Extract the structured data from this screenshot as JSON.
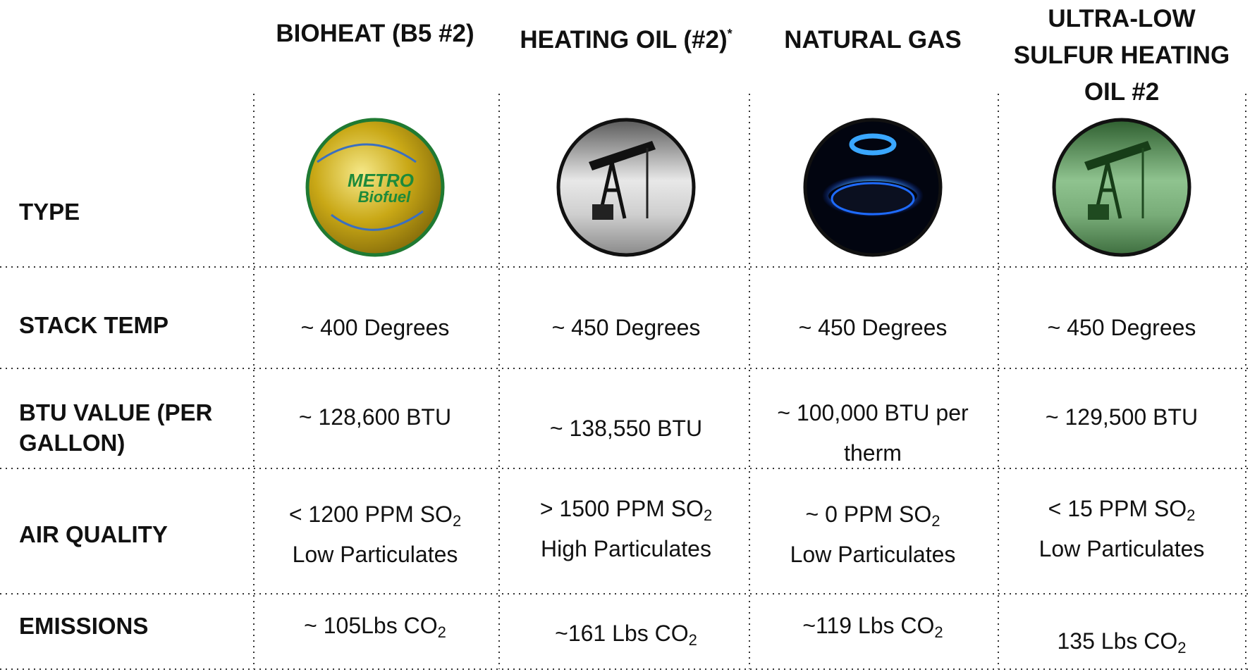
{
  "header": {
    "columns": [
      {
        "text": "BIOHEAT (B5 #2)"
      },
      {
        "text": "HEATING OIL (#2)",
        "sup": "*"
      },
      {
        "text": "NATURAL GAS"
      },
      {
        "lines": [
          "ULTRA-LOW",
          "SULFUR  HEATING",
          "OIL #2"
        ]
      }
    ]
  },
  "logo": {
    "brand": "METRO",
    "product": "Biofuel"
  },
  "rows": [
    {
      "label": [
        "TYPE"
      ],
      "cells": []
    },
    {
      "label": [
        "STACK TEMP"
      ],
      "cells": [
        {
          "text": "~ 400 Degrees"
        },
        {
          "text": "~ 450 Degrees"
        },
        {
          "text": "~ 450 Degrees"
        },
        {
          "text": "~ 450 Degrees"
        }
      ]
    },
    {
      "label": [
        "BTU VALUE (PER",
        "GALLON)"
      ],
      "cells": [
        {
          "text": "~ 128,600 BTU"
        },
        {
          "text": "~ 138,550 BTU"
        },
        {
          "text": "~ 100,000 BTU per",
          "line2": "therm"
        },
        {
          "text": "~ 129,500 BTU"
        }
      ]
    },
    {
      "label": [
        "AIR QUALITY"
      ],
      "cells": [
        {
          "text": "< 1200 PPM SO",
          "sub": "2",
          "line2": "Low Particulates"
        },
        {
          "text": "> 1500 PPM SO",
          "sub": "2",
          "line2": "High Particulates"
        },
        {
          "text": "~ 0 PPM SO",
          "sub": "2",
          "line2": "Low Particulates"
        },
        {
          "text": "< 15 PPM SO",
          "sub": "2",
          "line2": "Low Particulates"
        }
      ]
    },
    {
      "label": [
        "EMISSIONS"
      ],
      "cells": [
        {
          "text": "~ 105Lbs CO",
          "sub": "2"
        },
        {
          "text": "~161 Lbs CO",
          "sub": "2"
        },
        {
          "text": "~119 Lbs CO",
          "sub": "2"
        },
        {
          "text": "135 Lbs CO",
          "sub": "2"
        }
      ]
    }
  ]
}
